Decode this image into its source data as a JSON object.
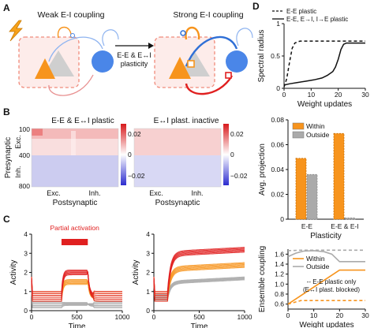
{
  "panel_letters": {
    "a": "A",
    "b": "B",
    "c": "C",
    "d": "D"
  },
  "panel_a": {
    "weak_title": "Weak E-I coupling",
    "strong_title": "Strong E-I coupling",
    "arrow_label_1": "E-E & E↔I",
    "arrow_label_2": "plasticity"
  },
  "colors": {
    "excitatory": "#f7941d",
    "inhibitory": "#4a86e8",
    "plastic_red": "#e02020",
    "gray": "#aaaaaa"
  },
  "panel_b": {
    "left_title": "E-E & E↔I plastic",
    "right_title": "E↔I plast. inactive",
    "ylabel": "Presynaptic",
    "row_labels": [
      "Exc.",
      "Inh."
    ],
    "yticks": [
      "100",
      "400",
      "800"
    ],
    "xticks": [
      "Exc.",
      "Inh."
    ],
    "xlabel": "Postsynaptic",
    "colorbar_ticks": [
      "0.02",
      "0",
      "−0.02"
    ]
  },
  "chart_data": [
    {
      "type": "line",
      "panel": "C-left",
      "annotation": "Partial activation",
      "xlabel": "Time",
      "ylabel": "Activity",
      "xlim": [
        0,
        1000
      ],
      "ylim": [
        0,
        4
      ],
      "xticks": [
        0,
        500,
        1000
      ],
      "yticks": [
        0,
        1,
        2,
        3,
        4
      ],
      "stimulus_window": [
        330,
        620
      ],
      "series": [
        {
          "color": "#e02020",
          "baseline": 0.75,
          "plateau": 2.0
        },
        {
          "color": "#f7941d",
          "baseline": 0.75,
          "plateau": 1.5
        },
        {
          "color": "#aaaaaa",
          "baseline": 0.3,
          "plateau": 0.35
        }
      ]
    },
    {
      "type": "line",
      "panel": "C-right",
      "xlabel": "Time",
      "ylabel": "Activity",
      "xlim": [
        0,
        1000
      ],
      "ylim": [
        0,
        4
      ],
      "xticks": [
        0,
        500,
        1000
      ],
      "yticks": [
        0,
        1,
        2,
        3,
        4
      ],
      "series": [
        {
          "color": "#e02020",
          "baseline": 0.75,
          "plateau": 3.0
        },
        {
          "color": "#f7941d",
          "baseline": 0.75,
          "plateau": 2.2
        },
        {
          "color": "#aaaaaa",
          "baseline": 0.7,
          "plateau": 1.5
        }
      ]
    },
    {
      "type": "line",
      "panel": "D-top",
      "xlabel": "Weight updates",
      "ylabel": "Spectral radius",
      "xlim": [
        0,
        30
      ],
      "ylim": [
        0,
        1
      ],
      "xticks": [
        0,
        10,
        20,
        30
      ],
      "yticks": [
        0,
        0.5,
        1
      ],
      "series": [
        {
          "name": "E-E plastic",
          "style": "dashed",
          "x": [
            0,
            1,
            2,
            3,
            4,
            5,
            6,
            30
          ],
          "y": [
            0.02,
            0.15,
            0.4,
            0.62,
            0.7,
            0.72,
            0.73,
            0.73
          ]
        },
        {
          "name": "E-E, E→I, I→E plastic",
          "style": "solid",
          "x": [
            0,
            2,
            5,
            8,
            11,
            14,
            16,
            18,
            19,
            20,
            21,
            22,
            23,
            30
          ],
          "y": [
            0.05,
            0.07,
            0.09,
            0.11,
            0.13,
            0.16,
            0.2,
            0.26,
            0.33,
            0.45,
            0.6,
            0.68,
            0.7,
            0.7
          ]
        }
      ]
    },
    {
      "type": "bar",
      "panel": "D-middle",
      "xlabel": "Plasticity",
      "ylabel": "Avg. projection",
      "ylim": [
        0,
        0.08
      ],
      "yticks": [
        0,
        0.02,
        0.04,
        0.06,
        0.08
      ],
      "categories": [
        "E-E",
        "E-E & E-I"
      ],
      "series": [
        {
          "name": "Within",
          "color": "#f7941d",
          "values": [
            0.049,
            0.069
          ]
        },
        {
          "name": "Outside",
          "color": "#aaaaaa",
          "values": [
            0.036,
            0.001
          ]
        }
      ]
    },
    {
      "type": "line",
      "panel": "D-bottom",
      "xlabel": "Weight updates",
      "ylabel": "Ensemble coupling",
      "xlim": [
        0,
        30
      ],
      "ylim": [
        0.5,
        1.7
      ],
      "xticks": [
        0,
        10,
        20,
        30
      ],
      "yticks": [
        0.6,
        0.8,
        1.0,
        1.2,
        1.4,
        1.6
      ],
      "annotation": "-- E-E plastic only\n(E↔I plast. blocked)",
      "series": [
        {
          "name": "Within",
          "color": "#f7941d",
          "style": "solid",
          "x": [
            0,
            20,
            30
          ],
          "y": [
            0.6,
            1.28,
            1.28
          ]
        },
        {
          "name": "Outside",
          "color": "#aaaaaa",
          "style": "solid",
          "x": [
            0,
            3,
            6,
            10,
            14,
            17,
            20,
            30
          ],
          "y": [
            1.55,
            1.62,
            1.66,
            1.67,
            1.65,
            1.6,
            1.45,
            1.45
          ]
        },
        {
          "name": "Within (E-E only)",
          "color": "#f7941d",
          "style": "dashed",
          "x": [
            0,
            5,
            30
          ],
          "y": [
            0.6,
            0.67,
            0.67
          ]
        },
        {
          "name": "Outside (E-E only)",
          "color": "#aaaaaa",
          "style": "dashed",
          "x": [
            0,
            5,
            30
          ],
          "y": [
            1.67,
            1.68,
            1.68
          ]
        }
      ]
    }
  ]
}
